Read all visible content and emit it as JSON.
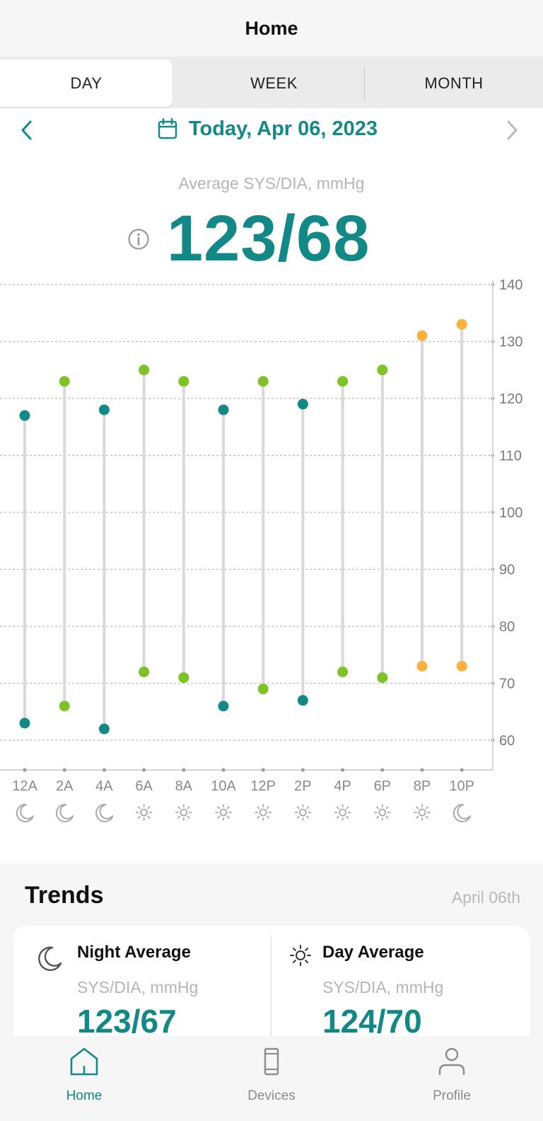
{
  "header": {
    "title": "Home"
  },
  "tabs": [
    {
      "label": "DAY",
      "active": true
    },
    {
      "label": "WEEK",
      "active": false
    },
    {
      "label": "MONTH",
      "active": false
    }
  ],
  "date_nav": {
    "date": "Today, Apr 06, 2023",
    "prev_icon": "chevron-left-icon",
    "next_icon": "chevron-right-icon",
    "calendar_icon": "calendar-icon"
  },
  "summary": {
    "label": "Average SYS/DIA, mmHg",
    "value": "123/68",
    "info_icon": "info-icon"
  },
  "colors": {
    "teal": "#128986",
    "green": "#7ec225",
    "orange": "#fbb13c",
    "range_line": "#d9d9d9",
    "grid": "#bcbcbc"
  },
  "chart_data": {
    "type": "range-dot",
    "categories": [
      "12A",
      "2A",
      "4A",
      "6A",
      "8A",
      "10A",
      "12P",
      "2P",
      "4P",
      "6P",
      "8P",
      "10P"
    ],
    "period_icons": [
      "moon",
      "moon",
      "moon",
      "sun",
      "sun",
      "sun",
      "sun",
      "sun",
      "sun",
      "sun",
      "sun",
      "moon"
    ],
    "systolic": [
      117,
      123,
      118,
      125,
      123,
      118,
      123,
      119,
      123,
      125,
      131,
      133
    ],
    "diastolic": [
      63,
      66,
      62,
      72,
      71,
      66,
      69,
      67,
      72,
      71,
      73,
      73
    ],
    "point_colors": [
      "teal",
      "green",
      "teal",
      "green",
      "green",
      "teal",
      "green",
      "teal",
      "green",
      "green",
      "orange",
      "orange"
    ],
    "y_ticks": [
      60,
      70,
      80,
      90,
      100,
      110,
      120,
      130,
      140
    ],
    "ylim": [
      55,
      140
    ],
    "grid": true,
    "y_axis_side": "right"
  },
  "trends": {
    "title": "Trends",
    "date": "April 06th",
    "night": {
      "title": "Night Average",
      "sub": "SYS/DIA, mmHg",
      "value": "123/67",
      "icon": "moon-icon"
    },
    "day": {
      "title": "Day Average",
      "sub": "SYS/DIA, mmHg",
      "value": "124/70",
      "icon": "sun-icon"
    }
  },
  "nav": [
    {
      "label": "Home",
      "icon": "home-icon",
      "active": true
    },
    {
      "label": "Devices",
      "icon": "device-icon",
      "active": false
    },
    {
      "label": "Profile",
      "icon": "profile-icon",
      "active": false
    }
  ]
}
